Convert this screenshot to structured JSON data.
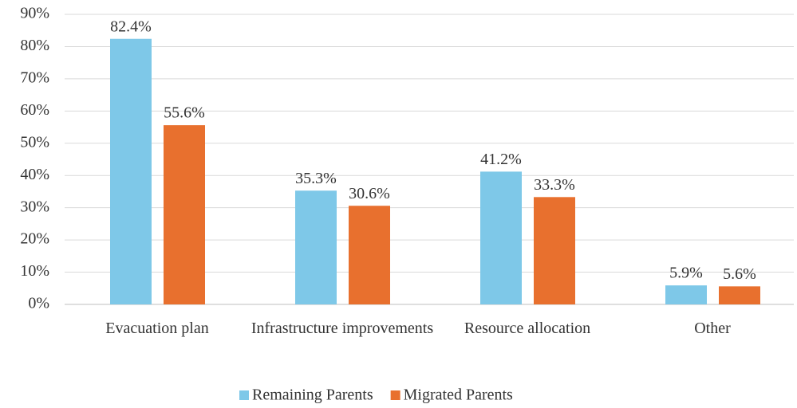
{
  "chart_data": {
    "type": "bar",
    "categories": [
      "Evacuation plan",
      "Infrastructure improvements",
      "Resource allocation",
      "Other"
    ],
    "series": [
      {
        "name": "Remaining Parents",
        "color": "#7ec8e8",
        "values": [
          82.4,
          35.3,
          41.2,
          5.9
        ],
        "value_labels": [
          "82.4%",
          "35.3%",
          "41.2%",
          "5.9%"
        ]
      },
      {
        "name": "Migrated Parents",
        "color": "#e8702e",
        "values": [
          55.6,
          30.6,
          33.3,
          5.6
        ],
        "value_labels": [
          "55.6%",
          "30.6%",
          "33.3%",
          "5.6%"
        ]
      }
    ],
    "ylim": [
      0,
      90
    ],
    "yticks": [
      {
        "value": 0,
        "label": "0%"
      },
      {
        "value": 10,
        "label": "10%"
      },
      {
        "value": 20,
        "label": "20%"
      },
      {
        "value": 30,
        "label": "30%"
      },
      {
        "value": 40,
        "label": "40%"
      },
      {
        "value": 50,
        "label": "50%"
      },
      {
        "value": 60,
        "label": "60%"
      },
      {
        "value": 70,
        "label": "70%"
      },
      {
        "value": 80,
        "label": "80%"
      },
      {
        "value": 90,
        "label": "90%"
      }
    ],
    "grid": true,
    "legend": "bottom"
  }
}
